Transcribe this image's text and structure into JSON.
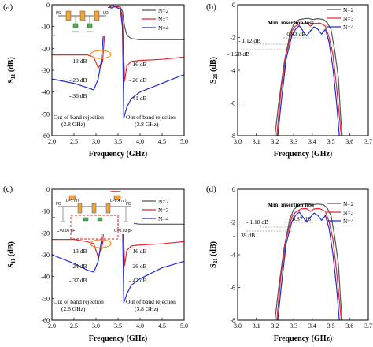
{
  "chart_data": [
    {
      "panel_label": "(a)",
      "type": "line",
      "xlabel": "Frequency (GHz)",
      "ylabel": "S11 (dB)",
      "ylabel_main": "S",
      "ylabel_sub": "11",
      "ylabel_unit": " (dB)",
      "xlim": [
        2.0,
        5.0
      ],
      "ylim": [
        -60,
        0
      ],
      "xticks": [
        "2.0",
        "2.5",
        "3.0",
        "3.5",
        "4.0",
        "4.5",
        "5.0"
      ],
      "yticks": [
        "0",
        "-10",
        "-20",
        "-30",
        "-40",
        "-50",
        "-60"
      ],
      "legend": [
        "N=2",
        "N=3",
        "N=4"
      ],
      "colors": [
        "#555555",
        "#e8262c",
        "#1f2bd6"
      ],
      "inset_labels": [
        "I/O",
        "I/O"
      ],
      "annotations": [
        "- 13 dB",
        "- 23 dB",
        "- 36 dB",
        "- 16 dB",
        "- 26 dB",
        "- 41 dB"
      ],
      "notes": [
        "Out of band rejection",
        "(2.8 GHz)",
        "Out of band rejection",
        "(3.8 GHz)"
      ],
      "series": [
        {
          "name": "N=2",
          "x": [
            2.0,
            2.5,
            2.8,
            2.95,
            3.1,
            3.2,
            3.25,
            3.3,
            3.35,
            3.4,
            3.45,
            3.5,
            3.55,
            3.6,
            3.65,
            3.7,
            3.8,
            4.0,
            4.5,
            5.0
          ],
          "y": [
            -14,
            -14,
            -13.5,
            -13,
            -12.5,
            -10,
            -6,
            -2,
            -0.5,
            -0.5,
            -1,
            -0.5,
            -1,
            -3,
            -10,
            -14,
            -15.5,
            -16,
            -16,
            -16
          ]
        },
        {
          "name": "N=3",
          "x": [
            2.0,
            2.5,
            2.8,
            2.95,
            3.05,
            3.15,
            3.2,
            3.25,
            3.3,
            3.35,
            3.4,
            3.45,
            3.5,
            3.55,
            3.6,
            3.65,
            3.7,
            3.8,
            4.0,
            4.5,
            5.0
          ],
          "y": [
            -23,
            -23,
            -23,
            -24,
            -29,
            -26,
            -12,
            -4,
            -1,
            -0.5,
            -1,
            -0.5,
            -1,
            -1,
            -6,
            -35,
            -28,
            -26,
            -25.5,
            -25,
            -24
          ]
        },
        {
          "name": "N=4",
          "x": [
            2.0,
            2.5,
            2.8,
            2.95,
            3.05,
            3.12,
            3.18,
            3.25,
            3.3,
            3.35,
            3.4,
            3.45,
            3.5,
            3.55,
            3.6,
            3.63,
            3.7,
            3.8,
            4.0,
            4.5,
            5.0
          ],
          "y": [
            -34,
            -36,
            -38,
            -39,
            -34,
            -26,
            -10,
            -2,
            -1,
            -1.5,
            -1,
            -1,
            -1.5,
            -2,
            -10,
            -52,
            -47,
            -43,
            -40,
            -36,
            -32
          ]
        }
      ]
    },
    {
      "panel_label": "(b)",
      "type": "line",
      "xlabel": "Frequency (GHz)",
      "ylabel": "S21 (dB)",
      "ylabel_main": "S",
      "ylabel_sub": "21",
      "ylabel_unit": " (dB)",
      "xlim": [
        3.0,
        3.7
      ],
      "ylim": [
        -8,
        0
      ],
      "xticks": [
        "3.0",
        "3.1",
        "3.2",
        "3.3",
        "3.4",
        "3.5",
        "3.6",
        "3.7"
      ],
      "yticks": [
        "0",
        "-2",
        "-4",
        "-6",
        "-8"
      ],
      "legend": [
        "N=2",
        "N=3",
        "N=4"
      ],
      "colors": [
        "#555555",
        "#e8262c",
        "#1f2bd6"
      ],
      "annotations": [
        "Min. insertion loss",
        "- 0.83 dB",
        "- 1.12 dB",
        "- 1.28 dB"
      ],
      "series": [
        {
          "name": "N=2",
          "x": [
            3.2,
            3.22,
            3.25,
            3.28,
            3.3,
            3.33,
            3.36,
            3.38,
            3.4,
            3.43,
            3.46,
            3.48,
            3.5,
            3.52,
            3.54,
            3.55,
            3.56
          ],
          "y": [
            -8,
            -6,
            -3.5,
            -1.8,
            -1.2,
            -0.9,
            -0.85,
            -0.83,
            -0.9,
            -0.85,
            -0.9,
            -1.1,
            -1.5,
            -2.8,
            -4.5,
            -6.5,
            -8
          ]
        },
        {
          "name": "N=3",
          "x": [
            3.21,
            3.23,
            3.26,
            3.29,
            3.31,
            3.34,
            3.37,
            3.39,
            3.41,
            3.44,
            3.47,
            3.49,
            3.51,
            3.53,
            3.545,
            3.555
          ],
          "y": [
            -8,
            -5.5,
            -3,
            -1.6,
            -1.3,
            -1.15,
            -1.12,
            -1.3,
            -1.15,
            -1.12,
            -1.3,
            -2,
            -3,
            -5,
            -6.8,
            -8
          ]
        },
        {
          "name": "N=4",
          "x": [
            3.215,
            3.235,
            3.26,
            3.29,
            3.31,
            3.33,
            3.35,
            3.37,
            3.39,
            3.41,
            3.43,
            3.45,
            3.47,
            3.49,
            3.51,
            3.53,
            3.545
          ],
          "y": [
            -8,
            -5.8,
            -3.3,
            -1.9,
            -1.5,
            -1.28,
            -1.6,
            -1.9,
            -1.6,
            -1.35,
            -1.5,
            -1.8,
            -1.5,
            -2.3,
            -3.8,
            -6,
            -8
          ]
        }
      ]
    },
    {
      "panel_label": "(c)",
      "type": "line",
      "xlabel": "Frequency (GHz)",
      "ylabel": "S11 (dB)",
      "ylabel_main": "S",
      "ylabel_sub": "11",
      "ylabel_unit": " (dB)",
      "xlim": [
        2.0,
        5.0
      ],
      "ylim": [
        -60,
        0
      ],
      "xticks": [
        "2.0",
        "2.5",
        "3.0",
        "3.5",
        "4.0",
        "4.5",
        "5.0"
      ],
      "yticks": [
        "0",
        "-10",
        "-20",
        "-30",
        "-40",
        "-50",
        "-60"
      ],
      "legend": [
        "N=2",
        "N=3",
        "N=4"
      ],
      "colors": [
        "#555555",
        "#e8262c",
        "#1f2bd6"
      ],
      "inset_labels": [
        "L=1 nH",
        "L=0.4 nH",
        "I/O",
        "I/O",
        "C=0.06 pF",
        "C=0.03 pF"
      ],
      "annotations": [
        "- 13 dB",
        "- 24 dB",
        "- 37 dB",
        "- 16 dB",
        "- 26 dB",
        "- 42 dB"
      ],
      "notes": [
        "Out of band rejection",
        "(2.8 GHz)",
        "Out of band rejection",
        "(3.8 GHz)"
      ],
      "series": [
        {
          "name": "N=2",
          "x": [
            2.0,
            2.5,
            2.8,
            2.95,
            3.1,
            3.2,
            3.25,
            3.3,
            3.35,
            3.4,
            3.45,
            3.5,
            3.55,
            3.6,
            3.65,
            3.7,
            3.8,
            4.0,
            4.5,
            5.0
          ],
          "y": [
            -13,
            -13,
            -13,
            -13,
            -12,
            -9,
            -5,
            -2,
            -1,
            -1,
            -1,
            -1,
            -1,
            -3,
            -9,
            -14,
            -15.5,
            -16,
            -16,
            -16
          ]
        },
        {
          "name": "N=3",
          "x": [
            2.0,
            2.5,
            2.8,
            2.95,
            3.05,
            3.15,
            3.2,
            3.25,
            3.3,
            3.35,
            3.4,
            3.45,
            3.5,
            3.55,
            3.6,
            3.65,
            3.7,
            3.8,
            4.0,
            4.5,
            5.0
          ],
          "y": [
            -23,
            -23,
            -24,
            -25,
            -31,
            -25,
            -12,
            -4,
            -1.5,
            -1,
            -1,
            -1,
            -1.5,
            -2,
            -8,
            -35,
            -28,
            -26,
            -25.5,
            -25,
            -24
          ]
        },
        {
          "name": "N=4",
          "x": [
            2.0,
            2.5,
            2.8,
            2.95,
            3.05,
            3.12,
            3.18,
            3.25,
            3.3,
            3.35,
            3.4,
            3.45,
            3.5,
            3.55,
            3.6,
            3.63,
            3.7,
            3.8,
            4.0,
            4.5,
            5.0
          ],
          "y": [
            -30,
            -34,
            -37,
            -38,
            -33,
            -24,
            -10,
            -3,
            -2,
            -2,
            -1.5,
            -2,
            -2,
            -3,
            -12,
            -52,
            -48,
            -44,
            -41,
            -36,
            -33
          ]
        }
      ]
    },
    {
      "panel_label": "(d)",
      "type": "line",
      "xlabel": "Frequency (GHz)",
      "ylabel": "S21 (dB)",
      "ylabel_main": "S",
      "ylabel_sub": "21",
      "ylabel_unit": " (dB)",
      "xlim": [
        3.0,
        3.7
      ],
      "ylim": [
        -8,
        0
      ],
      "xticks": [
        "3.0",
        "3.1",
        "3.2",
        "3.3",
        "3.4",
        "3.5",
        "3.6",
        "3.7"
      ],
      "yticks": [
        "0",
        "-2",
        "-4",
        "-6",
        "-8"
      ],
      "legend": [
        "N=2",
        "N=3",
        "N=4"
      ],
      "colors": [
        "#555555",
        "#e8262c",
        "#1f2bd6"
      ],
      "annotations": [
        "Min. insertion loss",
        "- 0.87 dB",
        "- 1.18 dB",
        "- 1.39 dB"
      ],
      "series": [
        {
          "name": "N=2",
          "x": [
            3.2,
            3.22,
            3.25,
            3.28,
            3.3,
            3.33,
            3.36,
            3.38,
            3.4,
            3.43,
            3.46,
            3.48,
            3.5,
            3.52,
            3.54,
            3.55,
            3.56
          ],
          "y": [
            -8,
            -6,
            -3.5,
            -1.8,
            -1.25,
            -0.95,
            -0.9,
            -0.87,
            -0.95,
            -0.9,
            -0.95,
            -1.15,
            -1.6,
            -2.9,
            -4.6,
            -6.5,
            -8
          ]
        },
        {
          "name": "N=3",
          "x": [
            3.21,
            3.23,
            3.26,
            3.29,
            3.31,
            3.34,
            3.37,
            3.39,
            3.41,
            3.44,
            3.47,
            3.49,
            3.51,
            3.53,
            3.545,
            3.555
          ],
          "y": [
            -8,
            -5.5,
            -3,
            -1.7,
            -1.4,
            -1.2,
            -1.18,
            -1.35,
            -1.2,
            -1.18,
            -1.35,
            -2,
            -3,
            -5,
            -6.8,
            -8
          ]
        },
        {
          "name": "N=4",
          "x": [
            3.215,
            3.235,
            3.26,
            3.29,
            3.31,
            3.33,
            3.35,
            3.37,
            3.39,
            3.41,
            3.43,
            3.45,
            3.47,
            3.49,
            3.51,
            3.53,
            3.545
          ],
          "y": [
            -8,
            -5.8,
            -3.3,
            -2,
            -1.6,
            -1.39,
            -1.7,
            -2,
            -1.7,
            -1.45,
            -1.6,
            -1.9,
            -1.6,
            -2.4,
            -3.9,
            -6,
            -8
          ]
        }
      ]
    }
  ]
}
